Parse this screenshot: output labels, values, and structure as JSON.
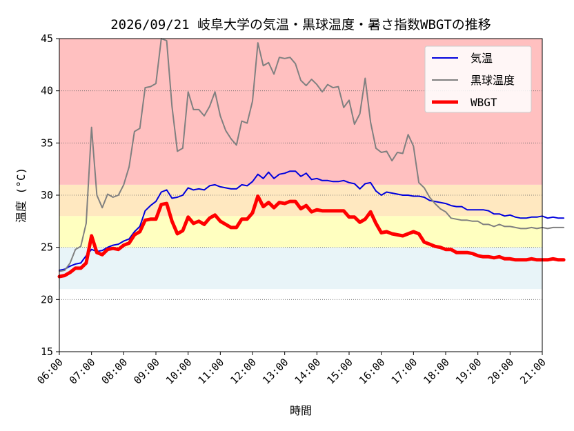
{
  "chart_data": {
    "type": "line",
    "title": "2026/09/21 岐阜大学の気温・黒球温度・暑さ指数WBGTの推移",
    "xlabel": "時間",
    "ylabel": "温度 (°C)",
    "xlim": [
      6,
      21
    ],
    "ylim": [
      15,
      45
    ],
    "yticks": [
      15,
      20,
      25,
      30,
      35,
      40,
      45
    ],
    "xticks": [
      "06:00",
      "07:00",
      "08:00",
      "09:00",
      "10:00",
      "11:00",
      "12:00",
      "13:00",
      "14:00",
      "15:00",
      "16:00",
      "17:00",
      "18:00",
      "19:00",
      "20:00",
      "21:00"
    ],
    "grid": "horizontal dotted",
    "legend_position": "top-right",
    "background_bands": [
      {
        "from": 21,
        "to": 25,
        "color": "#e8f4f8"
      },
      {
        "from": 25,
        "to": 28,
        "color": "#ffffc0"
      },
      {
        "from": 28,
        "to": 31,
        "color": "#ffe8c0"
      },
      {
        "from": 31,
        "to": 45,
        "color": "#ffc0c0"
      }
    ],
    "x_step_minutes": 10,
    "series": [
      {
        "name": "気温",
        "color": "#0000dd",
        "width": 2,
        "values": [
          22.8,
          22.9,
          23.2,
          23.4,
          23.5,
          24.2,
          24.8,
          24.6,
          24.7,
          25.0,
          25.2,
          25.3,
          25.6,
          25.8,
          26.5,
          27.0,
          28.5,
          29.0,
          29.4,
          30.3,
          30.5,
          29.7,
          29.8,
          30.0,
          30.7,
          30.5,
          30.6,
          30.5,
          30.9,
          31.0,
          30.8,
          30.7,
          30.6,
          30.6,
          31.0,
          30.9,
          31.3,
          32.0,
          31.6,
          32.2,
          31.6,
          32.0,
          32.1,
          32.3,
          32.3,
          31.8,
          32.1,
          31.5,
          31.6,
          31.4,
          31.4,
          31.3,
          31.3,
          31.4,
          31.2,
          31.1,
          30.6,
          31.1,
          31.2,
          30.4,
          30.0,
          30.3,
          30.2,
          30.1,
          30.0,
          30.0,
          29.9,
          29.9,
          29.8,
          29.5,
          29.4,
          29.3,
          29.2,
          29.0,
          28.9,
          28.9,
          28.6,
          28.6,
          28.6,
          28.6,
          28.5,
          28.2,
          28.2,
          28.0,
          28.1,
          27.9,
          27.8,
          27.8,
          27.9,
          27.9,
          28.0,
          27.8,
          27.9,
          27.8,
          27.8
        ]
      },
      {
        "name": "黒球温度",
        "color": "#808080",
        "width": 2,
        "values": [
          22.7,
          22.8,
          23.5,
          24.8,
          25.1,
          27.3,
          36.5,
          30.0,
          28.8,
          30.1,
          29.8,
          30.0,
          31.0,
          32.7,
          36.1,
          36.4,
          40.3,
          40.4,
          40.7,
          45.0,
          44.8,
          38.5,
          34.2,
          34.5,
          39.9,
          38.2,
          38.2,
          37.6,
          38.5,
          39.9,
          37.6,
          36.2,
          35.4,
          34.8,
          37.1,
          36.9,
          39.0,
          44.6,
          42.4,
          42.7,
          41.6,
          43.2,
          43.1,
          43.2,
          42.6,
          41.0,
          40.5,
          41.1,
          40.6,
          39.9,
          40.6,
          40.3,
          40.4,
          38.4,
          39.1,
          36.8,
          37.8,
          41.2,
          37.0,
          34.5,
          34.1,
          34.2,
          33.3,
          34.1,
          34.0,
          35.8,
          34.7,
          31.2,
          30.7,
          29.8,
          29.2,
          28.7,
          28.4,
          27.8,
          27.7,
          27.6,
          27.6,
          27.5,
          27.5,
          27.2,
          27.2,
          27.0,
          27.2,
          27.0,
          27.0,
          26.9,
          26.8,
          26.8,
          26.9,
          26.8,
          26.9,
          26.8,
          26.9,
          26.9,
          26.9
        ]
      },
      {
        "name": "WBGT",
        "color": "#ff0000",
        "width": 5,
        "values": [
          22.2,
          22.3,
          22.6,
          23.0,
          23.0,
          23.5,
          26.1,
          24.5,
          24.3,
          24.8,
          24.9,
          24.8,
          25.2,
          25.4,
          26.2,
          26.5,
          27.6,
          27.7,
          27.7,
          29.1,
          29.2,
          27.5,
          26.3,
          26.6,
          27.9,
          27.3,
          27.5,
          27.2,
          27.8,
          28.1,
          27.5,
          27.2,
          26.9,
          26.9,
          27.7,
          27.7,
          28.3,
          29.9,
          28.9,
          29.3,
          28.8,
          29.3,
          29.2,
          29.4,
          29.4,
          28.7,
          29.0,
          28.4,
          28.6,
          28.5,
          28.5,
          28.5,
          28.5,
          28.5,
          27.9,
          27.9,
          27.4,
          27.7,
          28.4,
          27.3,
          26.4,
          26.5,
          26.3,
          26.2,
          26.1,
          26.3,
          26.5,
          26.3,
          25.5,
          25.3,
          25.1,
          25.0,
          24.8,
          24.8,
          24.5,
          24.5,
          24.5,
          24.4,
          24.2,
          24.1,
          24.1,
          24.0,
          24.1,
          23.9,
          23.9,
          23.8,
          23.8,
          23.8,
          23.9,
          23.8,
          23.8,
          23.8,
          23.9,
          23.8,
          23.8
        ]
      }
    ]
  }
}
